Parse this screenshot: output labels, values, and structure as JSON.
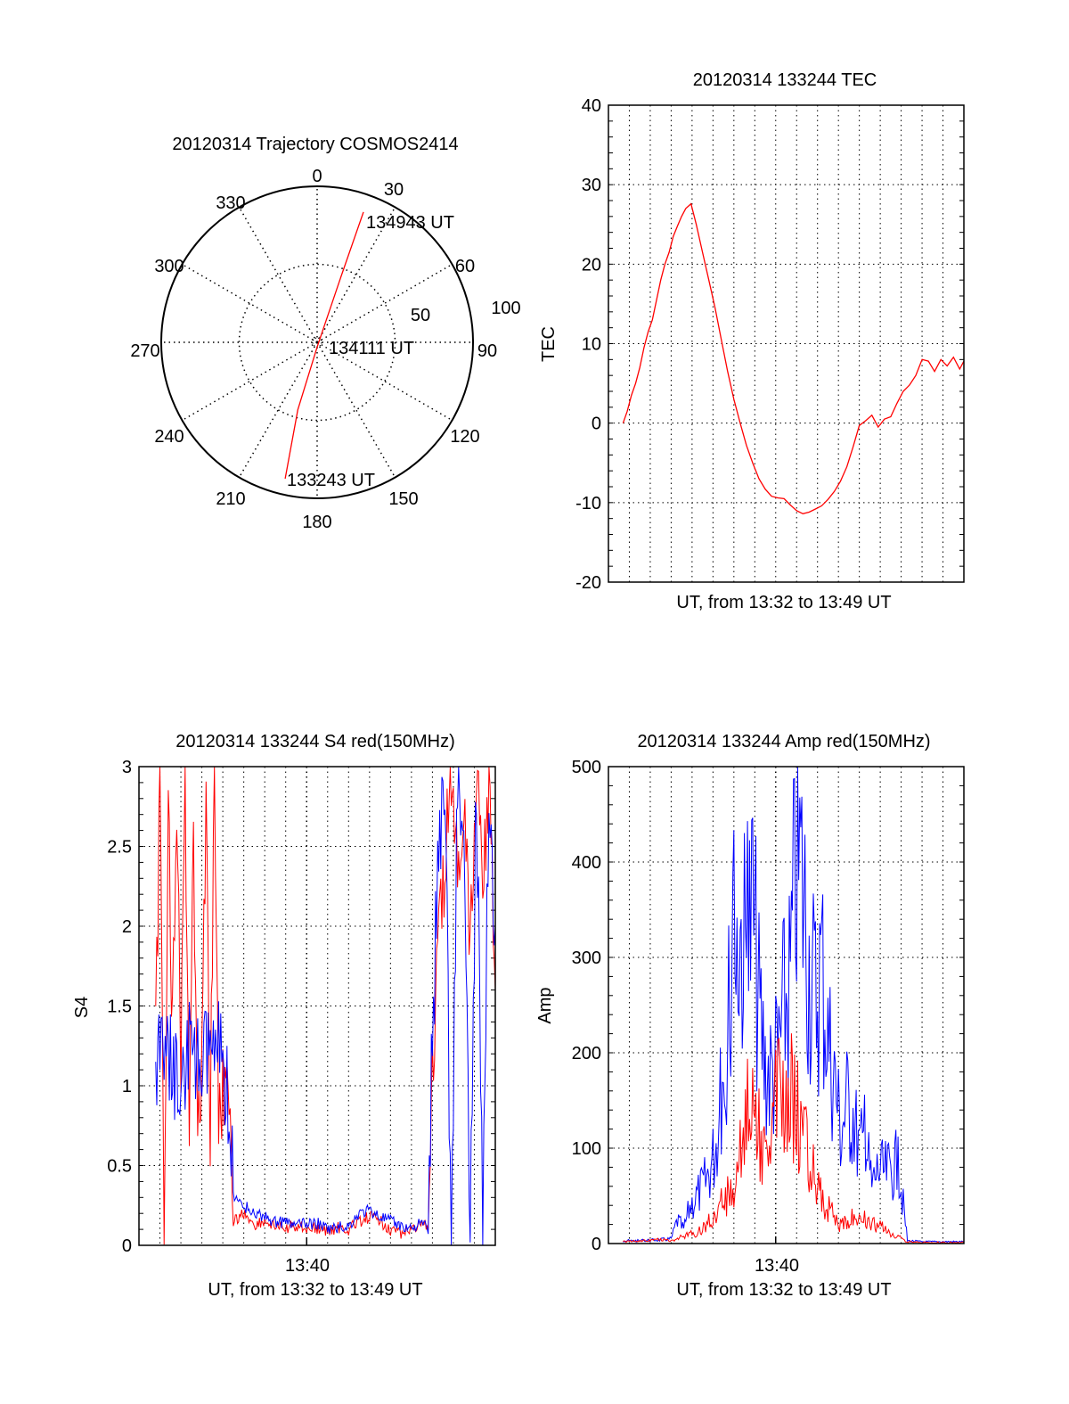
{
  "colors": {
    "red": "#ff0000",
    "blue": "#0000ff",
    "axis": "#000000"
  },
  "chart_data": [
    {
      "type": "polar",
      "title": "20120314 Trajectory COSMOS2414",
      "angle_ticks": [
        "0",
        "30",
        "60",
        "90",
        "120",
        "150",
        "180",
        "210",
        "240",
        "270",
        "300",
        "330"
      ],
      "angle_values": [
        0,
        30,
        60,
        90,
        120,
        150,
        180,
        210,
        240,
        270,
        300,
        330
      ],
      "radial_ticks": [
        "50",
        "100"
      ],
      "radial_values": [
        50,
        100
      ],
      "rlim": [
        0,
        100
      ],
      "series": [
        {
          "name": "trajectory",
          "color": "red",
          "points": [
            {
              "az": 193.2,
              "r": 89.8
            },
            {
              "az": 196,
              "r": 45
            },
            {
              "az": 180,
              "r": 3
            },
            {
              "az": 20,
              "r": 45
            },
            {
              "az": 19.6,
              "r": 88.6
            }
          ]
        }
      ],
      "annotations": [
        {
          "text": "133243 UT",
          "az": 193.2,
          "r": 89.8
        },
        {
          "text": "134111 UT",
          "az": 20,
          "r": 3
        },
        {
          "text": "134943 UT",
          "az": 19.6,
          "r": 88.6
        }
      ]
    },
    {
      "type": "line",
      "title": "20120314 133244 TEC",
      "xlabel": "UT, from 13:32 to 13:49 UT",
      "ylabel": "TEC",
      "xlim": [
        0,
        17
      ],
      "ylim": [
        -20,
        40
      ],
      "yticks": [
        "40",
        "30",
        "20",
        "10",
        "0",
        "-10",
        "-20"
      ],
      "ytick_values": [
        40,
        30,
        20,
        10,
        0,
        -10,
        -20
      ],
      "xticks": [],
      "grid": true,
      "series": [
        {
          "name": "TEC",
          "color": "red",
          "x": [
            0.7,
            0.9,
            1.1,
            1.3,
            1.5,
            1.7,
            1.9,
            2.1,
            2.3,
            2.5,
            2.7,
            2.9,
            3.1,
            3.3,
            3.5,
            3.7,
            3.95,
            4.2,
            4.5,
            4.8,
            5.1,
            5.4,
            5.7,
            6.0,
            6.3,
            6.6,
            6.9,
            7.2,
            7.5,
            7.8,
            8.1,
            8.4,
            8.7,
            9.0,
            9.3,
            9.6,
            9.9,
            10.2,
            10.5,
            10.8,
            11.1,
            11.4,
            11.7,
            12.0,
            12.3,
            12.6,
            12.9,
            13.2,
            13.5,
            13.8,
            14.1,
            14.4,
            14.7,
            15.0,
            15.3,
            15.6,
            15.9,
            16.2,
            16.5,
            16.8,
            17.0
          ],
          "y": [
            0.0,
            1.5,
            3.5,
            5.0,
            7.0,
            9.5,
            11.5,
            13.0,
            15.5,
            18.0,
            20.0,
            21.5,
            23.5,
            24.8,
            26.0,
            27.0,
            27.6,
            25.0,
            21.5,
            18.0,
            14.5,
            10.5,
            6.5,
            3.0,
            0.0,
            -2.8,
            -5.0,
            -7.0,
            -8.3,
            -9.2,
            -9.4,
            -9.5,
            -10.3,
            -11.0,
            -11.4,
            -11.2,
            -10.8,
            -10.4,
            -9.6,
            -8.6,
            -7.3,
            -5.5,
            -3.0,
            -0.3,
            0.3,
            1.0,
            -0.5,
            0.5,
            0.8,
            2.5,
            4.0,
            4.8,
            6.0,
            8.0,
            7.8,
            6.5,
            8.0,
            7.2,
            8.3,
            6.8,
            7.8
          ]
        }
      ]
    },
    {
      "type": "line",
      "title": "20120314 133244 S4 red(150MHz)",
      "xlabel": "UT, from 13:32 to 13:49 UT",
      "ylabel": "S4",
      "xlim": [
        0,
        17
      ],
      "ylim": [
        0,
        3
      ],
      "yticks": [
        "3",
        "2.5",
        "2",
        "1.5",
        "1",
        "0.5",
        "0"
      ],
      "ytick_values": [
        3,
        2.5,
        2,
        1.5,
        1,
        0.5,
        0
      ],
      "xticks": [
        "13:40"
      ],
      "xtick_values": [
        8
      ],
      "grid": true,
      "series": [
        {
          "name": "S4 red",
          "color": "red",
          "x": [
            0.8,
            1.0,
            1.2,
            1.4,
            1.6,
            1.8,
            2.0,
            2.2,
            2.4,
            2.6,
            2.8,
            3.0,
            3.2,
            3.4,
            3.6,
            3.8,
            4.0,
            4.2,
            4.5,
            5.0,
            5.5,
            6.0,
            6.5,
            7.0,
            7.5,
            8.0,
            8.5,
            9.0,
            9.5,
            10.0,
            10.5,
            11.0,
            11.5,
            12.0,
            12.5,
            13.0,
            13.5,
            13.8,
            14.0,
            14.3,
            14.6,
            14.9,
            15.2,
            15.5,
            15.8,
            16.1,
            16.4,
            16.7,
            17.0
          ],
          "y": [
            1.2,
            3.0,
            0.0,
            3.0,
            1.3,
            2.8,
            1.0,
            3.0,
            0.8,
            2.5,
            0.9,
            1.0,
            2.9,
            0.8,
            2.9,
            0.9,
            1.0,
            0.9,
            0.15,
            0.2,
            0.13,
            0.15,
            0.12,
            0.1,
            0.12,
            0.11,
            0.1,
            0.09,
            0.11,
            0.1,
            0.15,
            0.18,
            0.15,
            0.1,
            0.08,
            0.1,
            0.15,
            0.1,
            1.0,
            1.8,
            2.5,
            3.0,
            2.2,
            2.9,
            2.0,
            3.0,
            2.4,
            2.8,
            1.6
          ]
        },
        {
          "name": "S4 blue",
          "color": "blue",
          "x": [
            0.8,
            1.0,
            1.2,
            1.4,
            1.6,
            1.8,
            2.0,
            2.2,
            2.4,
            2.6,
            2.8,
            3.0,
            3.2,
            3.4,
            3.6,
            3.8,
            4.0,
            4.2,
            4.5,
            5.0,
            5.5,
            6.0,
            6.5,
            7.0,
            7.5,
            8.0,
            8.5,
            9.0,
            9.5,
            10.0,
            10.5,
            11.0,
            11.5,
            12.0,
            12.5,
            13.0,
            13.5,
            13.8,
            14.0,
            14.3,
            14.6,
            14.9,
            15.2,
            15.5,
            15.8,
            16.1,
            16.4,
            16.7,
            17.0
          ],
          "y": [
            1.2,
            1.1,
            1.3,
            1.1,
            1.2,
            1.0,
            1.2,
            1.1,
            1.3,
            1.1,
            1.2,
            1.1,
            1.2,
            1.3,
            1.1,
            1.2,
            1.1,
            1.0,
            0.3,
            0.25,
            0.2,
            0.18,
            0.15,
            0.14,
            0.13,
            0.13,
            0.14,
            0.1,
            0.11,
            0.12,
            0.2,
            0.22,
            0.18,
            0.15,
            0.12,
            0.11,
            0.14,
            0.1,
            1.3,
            2.5,
            3.0,
            0.0,
            3.0,
            2.5,
            0.0,
            3.0,
            0.0,
            3.0,
            2.0
          ]
        }
      ]
    },
    {
      "type": "line",
      "title": "20120314 133244 Amp red(150MHz)",
      "xlabel": "UT, from 13:32 to 13:49 UT",
      "ylabel": "Amp",
      "xlim": [
        0,
        17
      ],
      "ylim": [
        0,
        500
      ],
      "yticks": [
        "500",
        "400",
        "300",
        "200",
        "100",
        "0"
      ],
      "ytick_values": [
        500,
        400,
        300,
        200,
        100,
        0
      ],
      "xticks": [
        "13:40"
      ],
      "xtick_values": [
        8
      ],
      "grid": true,
      "series": [
        {
          "name": "Amp blue",
          "color": "blue",
          "x": [
            0.7,
            1.5,
            2.5,
            3.0,
            3.3,
            3.6,
            3.9,
            4.2,
            4.5,
            4.8,
            5.1,
            5.4,
            5.7,
            6.0,
            6.3,
            6.6,
            6.9,
            7.2,
            7.5,
            7.8,
            8.1,
            8.4,
            8.7,
            9.0,
            9.3,
            9.6,
            9.9,
            10.2,
            10.5,
            10.8,
            11.1,
            11.4,
            11.7,
            12.0,
            12.3,
            12.6,
            12.9,
            13.2,
            13.5,
            13.8,
            14.0,
            14.3,
            15.0,
            16.0,
            17.0
          ],
          "y": [
            3,
            3,
            4,
            5,
            25,
            15,
            40,
            50,
            60,
            75,
            100,
            150,
            220,
            300,
            340,
            300,
            360,
            250,
            190,
            180,
            200,
            250,
            280,
            420,
            380,
            300,
            260,
            300,
            220,
            180,
            120,
            150,
            140,
            100,
            110,
            60,
            80,
            75,
            80,
            85,
            60,
            3,
            2,
            2,
            2
          ]
        },
        {
          "name": "Amp red",
          "color": "red",
          "x": [
            0.7,
            1.5,
            2.5,
            3.0,
            3.3,
            3.6,
            3.9,
            4.2,
            4.5,
            4.8,
            5.1,
            5.4,
            5.7,
            6.0,
            6.3,
            6.6,
            6.9,
            7.2,
            7.5,
            7.8,
            8.1,
            8.4,
            8.7,
            9.0,
            9.3,
            9.6,
            9.9,
            10.2,
            10.5,
            10.8,
            11.1,
            11.4,
            11.7,
            12.0,
            12.3,
            12.6,
            12.9,
            13.2,
            13.5,
            13.8,
            14.0,
            14.3,
            15.0,
            16.0,
            17.0
          ],
          "y": [
            2,
            3,
            4,
            3,
            5,
            8,
            10,
            12,
            18,
            25,
            30,
            40,
            50,
            65,
            95,
            130,
            160,
            120,
            100,
            130,
            150,
            170,
            160,
            140,
            110,
            90,
            70,
            50,
            40,
            25,
            20,
            25,
            30,
            28,
            25,
            20,
            18,
            15,
            10,
            8,
            5,
            2,
            1,
            1,
            1
          ]
        }
      ]
    }
  ]
}
